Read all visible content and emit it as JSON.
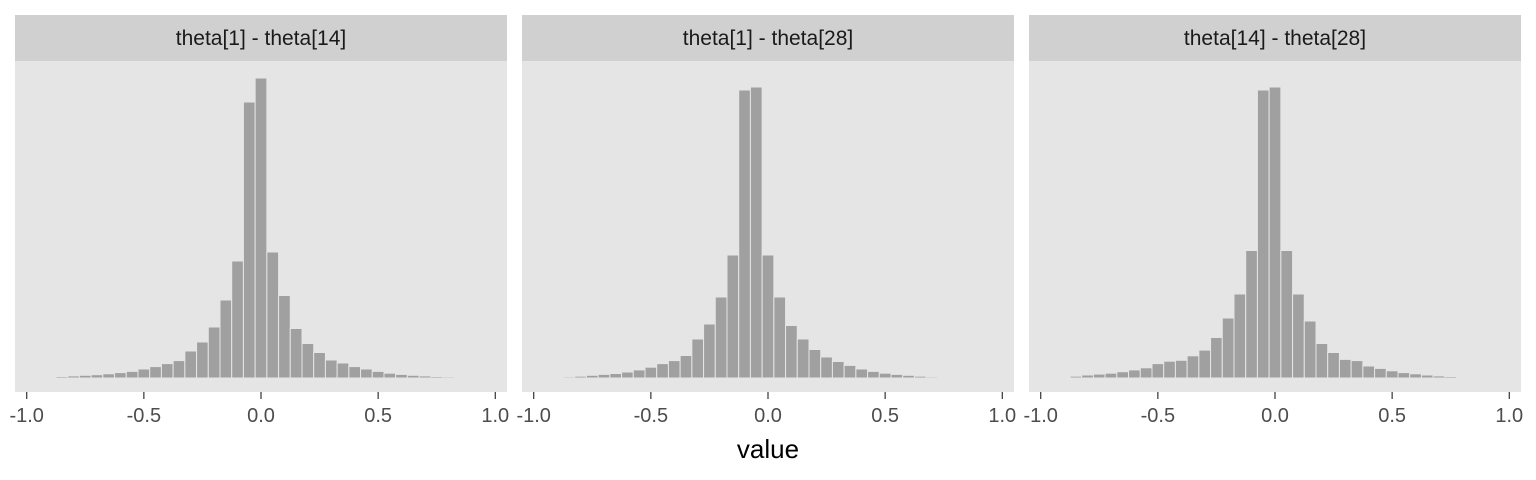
{
  "chart_data": {
    "type": "histogram",
    "layout": "facets in one row",
    "xlabel": "value",
    "xlim": [
      -1.05,
      1.05
    ],
    "x_ticks": [
      -1.0,
      -0.5,
      0.0,
      0.5,
      1.0
    ],
    "x_tick_labels": [
      "-1.0",
      "-0.5",
      "0.0",
      "0.5",
      "1.0"
    ],
    "y_axis_shown": false,
    "grid": false,
    "panel_background": "#e5e5e5",
    "strip_background": "#d0d0d0",
    "bar_color": "#a0a0a0",
    "bar_outline": "#e5e5e5",
    "bin_width": 0.05,
    "bin_centers": [
      -0.9,
      -0.85,
      -0.8,
      -0.75,
      -0.7,
      -0.65,
      -0.6,
      -0.55,
      -0.5,
      -0.45,
      -0.4,
      -0.35,
      -0.3,
      -0.25,
      -0.2,
      -0.15,
      -0.1,
      -0.05,
      0.0,
      0.05,
      0.1,
      0.15,
      0.2,
      0.25,
      0.3,
      0.35,
      0.4,
      0.45,
      0.5,
      0.55,
      0.6,
      0.65,
      0.7,
      0.75,
      0.8,
      0.85,
      0.9
    ],
    "panels": [
      {
        "label": "theta[1] - theta[14]",
        "counts": [
          0.003,
          0.005,
          0.007,
          0.009,
          0.011,
          0.014,
          0.018,
          0.022,
          0.03,
          0.038,
          0.048,
          0.058,
          0.09,
          0.12,
          0.17,
          0.26,
          0.39,
          0.92,
          1.0,
          0.42,
          0.275,
          0.165,
          0.115,
          0.085,
          0.06,
          0.05,
          0.038,
          0.03,
          0.022,
          0.016,
          0.012,
          0.009,
          0.007,
          0.005,
          0.004,
          0.003,
          0.002
        ]
      },
      {
        "label": "theta[1] - theta[28]",
        "counts": [
          0.002,
          0.004,
          0.006,
          0.009,
          0.012,
          0.015,
          0.02,
          0.027,
          0.036,
          0.048,
          0.058,
          0.075,
          0.13,
          0.18,
          0.27,
          0.41,
          0.96,
          0.97,
          0.41,
          0.27,
          0.175,
          0.13,
          0.095,
          0.07,
          0.055,
          0.042,
          0.03,
          0.022,
          0.016,
          0.012,
          0.009,
          0.006,
          0.004,
          0.003,
          0.002,
          0.001,
          0.001
        ]
      },
      {
        "label": "theta[14] - theta[28]",
        "counts": [
          0.003,
          0.006,
          0.01,
          0.013,
          0.016,
          0.021,
          0.027,
          0.034,
          0.048,
          0.056,
          0.059,
          0.074,
          0.093,
          0.135,
          0.2,
          0.28,
          0.425,
          0.96,
          0.97,
          0.425,
          0.28,
          0.19,
          0.115,
          0.085,
          0.062,
          0.058,
          0.04,
          0.032,
          0.024,
          0.018,
          0.014,
          0.01,
          0.007,
          0.005,
          0.003,
          0.002,
          0.001
        ]
      }
    ]
  }
}
